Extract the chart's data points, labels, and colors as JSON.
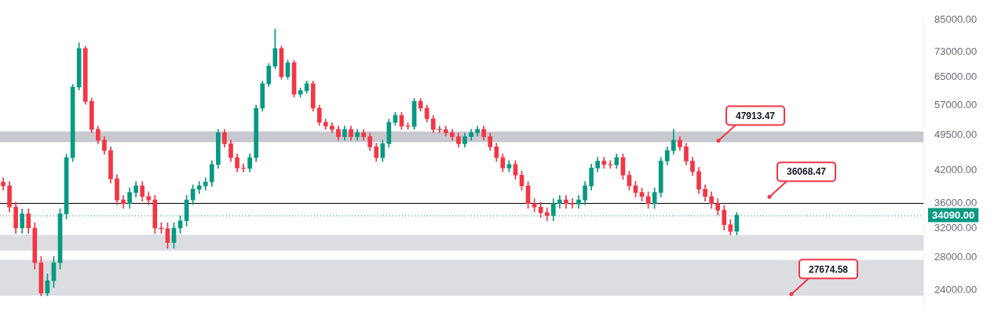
{
  "chart_data": {
    "type": "candlestick",
    "categories": [
      null,
      null,
      null,
      null,
      null,
      null,
      null,
      null,
      null,
      null,
      null,
      null,
      null,
      null,
      null,
      null,
      null,
      null,
      null,
      null,
      null,
      null,
      null,
      null,
      null,
      null,
      null,
      null,
      null,
      null,
      null,
      null,
      null,
      null,
      null,
      null,
      null,
      null,
      null,
      null,
      null,
      null,
      null,
      null,
      null,
      null,
      null,
      null,
      null,
      null,
      null,
      null,
      null,
      null,
      null,
      null,
      null,
      null,
      null,
      null,
      null,
      null,
      null,
      null,
      null,
      null,
      null,
      null,
      null,
      null,
      null,
      null,
      null,
      null,
      null,
      null,
      null,
      null,
      null,
      null,
      null,
      null,
      null,
      null,
      null,
      null,
      null,
      null,
      null,
      null,
      null,
      null,
      null,
      null,
      null,
      null,
      null,
      null,
      null,
      null,
      null,
      null,
      null,
      null,
      null,
      null,
      null,
      null,
      null,
      null,
      null,
      null,
      null,
      null,
      null,
      null,
      null,
      null,
      null,
      null,
      null,
      null,
      null,
      null,
      null,
      null,
      null,
      null,
      null,
      null,
      null,
      null,
      null,
      null,
      null,
      null,
      null,
      null,
      null,
      null,
      null,
      null,
      null,
      null,
      null,
      null
    ],
    "ohlc": [
      [
        39800,
        40600,
        38300,
        39100
      ],
      [
        39100,
        39900,
        34600,
        35400
      ],
      [
        35400,
        36200,
        31300,
        32100
      ],
      [
        32100,
        35100,
        31300,
        34300
      ],
      [
        34300,
        35100,
        31300,
        32100
      ],
      [
        32100,
        32900,
        26500,
        27300
      ],
      [
        27300,
        28100,
        23400,
        23700
      ],
      [
        23700,
        25900,
        23400,
        25100
      ],
      [
        25100,
        28100,
        24300,
        27300
      ],
      [
        27300,
        35100,
        26500,
        34300
      ],
      [
        34300,
        45400,
        33500,
        44600
      ],
      [
        44600,
        62800,
        43800,
        62000
      ],
      [
        62000,
        76300,
        61200,
        74300
      ],
      [
        74300,
        75100,
        57200,
        58000
      ],
      [
        58000,
        58800,
        50100,
        50900
      ],
      [
        50900,
        51700,
        47600,
        48400
      ],
      [
        48400,
        49200,
        45300,
        46100
      ],
      [
        46100,
        46900,
        39600,
        40400
      ],
      [
        40400,
        41200,
        35800,
        36600
      ],
      [
        36600,
        37400,
        35200,
        36000
      ],
      [
        36000,
        38700,
        35200,
        37900
      ],
      [
        37900,
        39900,
        37100,
        39100
      ],
      [
        39100,
        39900,
        36400,
        37200
      ],
      [
        37200,
        38000,
        35800,
        36600
      ],
      [
        36600,
        37400,
        31300,
        32100
      ],
      [
        32100,
        32900,
        31300,
        32000
      ],
      [
        32000,
        32900,
        29200,
        30000
      ],
      [
        30000,
        32900,
        29200,
        32100
      ],
      [
        32100,
        34000,
        31300,
        33200
      ],
      [
        33200,
        37400,
        32400,
        36600
      ],
      [
        36600,
        39300,
        35800,
        38500
      ],
      [
        38500,
        39900,
        37700,
        39100
      ],
      [
        39100,
        40600,
        38300,
        39800
      ],
      [
        39800,
        44000,
        39000,
        43200
      ],
      [
        43200,
        50900,
        42400,
        50100
      ],
      [
        50100,
        50900,
        46800,
        47600
      ],
      [
        47600,
        48400,
        43800,
        44600
      ],
      [
        44600,
        45400,
        41700,
        42500
      ],
      [
        42500,
        43300,
        41700,
        42400
      ],
      [
        42400,
        45400,
        41700,
        44600
      ],
      [
        44600,
        57000,
        43800,
        56200
      ],
      [
        56200,
        63800,
        55400,
        63000
      ],
      [
        63000,
        69200,
        62200,
        68400
      ],
      [
        68400,
        81400,
        67600,
        74300
      ],
      [
        74300,
        75100,
        64300,
        65100
      ],
      [
        65100,
        70300,
        64300,
        69500
      ],
      [
        69500,
        70300,
        59200,
        60000
      ],
      [
        60000,
        61800,
        59200,
        61000
      ],
      [
        61000,
        63800,
        60200,
        63000
      ],
      [
        63000,
        63800,
        55400,
        56200
      ],
      [
        56200,
        57000,
        51800,
        52600
      ],
      [
        52600,
        53400,
        50900,
        51700
      ],
      [
        51700,
        52500,
        50100,
        50900
      ],
      [
        50900,
        51700,
        48400,
        49200
      ],
      [
        49200,
        51700,
        48400,
        50900
      ],
      [
        50900,
        51700,
        48400,
        49200
      ],
      [
        49200,
        50900,
        48400,
        50100
      ],
      [
        50100,
        50900,
        48400,
        49200
      ],
      [
        49200,
        50000,
        46100,
        46900
      ],
      [
        46900,
        47700,
        43800,
        44600
      ],
      [
        44600,
        48400,
        43800,
        47600
      ],
      [
        47600,
        53400,
        46800,
        52600
      ],
      [
        52600,
        55100,
        51800,
        54300
      ],
      [
        54300,
        55100,
        50900,
        51700
      ],
      [
        51700,
        52500,
        50900,
        51600
      ],
      [
        51600,
        58800,
        50900,
        58000
      ],
      [
        58000,
        58800,
        55400,
        56200
      ],
      [
        56200,
        57000,
        52700,
        53500
      ],
      [
        53500,
        54300,
        50100,
        50900
      ],
      [
        50900,
        51700,
        50100,
        50800
      ],
      [
        50800,
        51700,
        49300,
        50100
      ],
      [
        50100,
        50900,
        48400,
        49200
      ],
      [
        49200,
        50000,
        46800,
        47600
      ],
      [
        47600,
        50000,
        46800,
        49200
      ],
      [
        49200,
        50900,
        48400,
        50100
      ],
      [
        50100,
        51700,
        49300,
        50900
      ],
      [
        50900,
        51700,
        48400,
        49200
      ],
      [
        49200,
        50000,
        46100,
        46900
      ],
      [
        46900,
        47700,
        43800,
        44600
      ],
      [
        44600,
        45400,
        41700,
        42500
      ],
      [
        42500,
        44000,
        41700,
        43200
      ],
      [
        43200,
        44000,
        40300,
        41100
      ],
      [
        41100,
        41900,
        38300,
        39100
      ],
      [
        39100,
        39900,
        35200,
        36000
      ],
      [
        36000,
        36800,
        34600,
        35400
      ],
      [
        35400,
        36200,
        33700,
        34500
      ],
      [
        34500,
        35300,
        33200,
        34000
      ],
      [
        34000,
        36800,
        33200,
        36000
      ],
      [
        36000,
        37400,
        35200,
        36600
      ],
      [
        36600,
        37400,
        35200,
        36000
      ],
      [
        36000,
        36800,
        35200,
        35900
      ],
      [
        35900,
        37400,
        35200,
        36600
      ],
      [
        36600,
        39900,
        35800,
        39100
      ],
      [
        39100,
        43300,
        38300,
        42500
      ],
      [
        42500,
        44700,
        41700,
        43900
      ],
      [
        43900,
        44700,
        42400,
        43200
      ],
      [
        43200,
        44000,
        42400,
        43100
      ],
      [
        43100,
        45400,
        42400,
        44600
      ],
      [
        44600,
        45400,
        40300,
        41100
      ],
      [
        41100,
        41900,
        38300,
        39100
      ],
      [
        39100,
        39900,
        37100,
        37900
      ],
      [
        37900,
        38700,
        36400,
        37200
      ],
      [
        37200,
        38000,
        35200,
        36000
      ],
      [
        36000,
        38700,
        35200,
        37900
      ],
      [
        37900,
        44700,
        37100,
        43900
      ],
      [
        43900,
        46900,
        43100,
        46100
      ],
      [
        46100,
        50900,
        45300,
        48400
      ],
      [
        48400,
        49200,
        46100,
        46900
      ],
      [
        46900,
        47700,
        43100,
        43900
      ],
      [
        43900,
        44700,
        41000,
        41800
      ],
      [
        41800,
        42600,
        37700,
        38500
      ],
      [
        38500,
        39300,
        36400,
        37200
      ],
      [
        37200,
        38000,
        35200,
        36000
      ],
      [
        36000,
        36800,
        34100,
        34900
      ],
      [
        34900,
        35700,
        31800,
        32600
      ],
      [
        32600,
        33400,
        31100,
        31600
      ],
      [
        31600,
        34500,
        31100,
        34090
      ],
      null,
      null,
      null,
      null,
      null,
      null,
      null,
      null,
      null,
      null,
      null,
      null,
      null,
      null,
      null,
      null,
      null,
      null,
      null,
      null,
      null,
      null,
      null,
      null,
      null,
      null,
      null,
      null,
      null
    ],
    "log": "y",
    "ylim": [
      22000,
      86000
    ],
    "yticks": [
      {
        "value": 24000,
        "label": "24000.00"
      },
      {
        "value": 28000,
        "label": "28000.00"
      },
      {
        "value": 32000,
        "label": "32000.00"
      },
      {
        "value": 36000,
        "label": "36000.00"
      },
      {
        "value": 42000,
        "label": "42000.00"
      },
      {
        "value": 49500,
        "label": "49500.00"
      },
      {
        "value": 57000,
        "label": "57000.00"
      },
      {
        "value": 65000,
        "label": "65000.00"
      },
      {
        "value": 73000,
        "label": "73000.00"
      },
      {
        "value": 85000,
        "label": "85000.00"
      }
    ],
    "tick_labels": "y",
    "ref_lines": [
      {
        "axis": "y",
        "value": 34090,
        "label": "34090.00",
        "color": "#089981",
        "line_style": "dotted"
      },
      {
        "axis": "y",
        "value": 36068.47,
        "label": "36068.47",
        "color": "#000000"
      }
    ],
    "bands": [
      {
        "axis": "y",
        "from": 47913.47,
        "to": 50400,
        "label": "47913.47",
        "color": "#c8c9cf"
      },
      {
        "axis": "y",
        "from": 28900,
        "to": 31100,
        "color": "#dcdde1"
      },
      {
        "axis": "y",
        "from": 23400,
        "to": 27674.58,
        "label": "27674.58",
        "color": "#dcdde1"
      }
    ],
    "grid": false,
    "legend": false
  }
}
